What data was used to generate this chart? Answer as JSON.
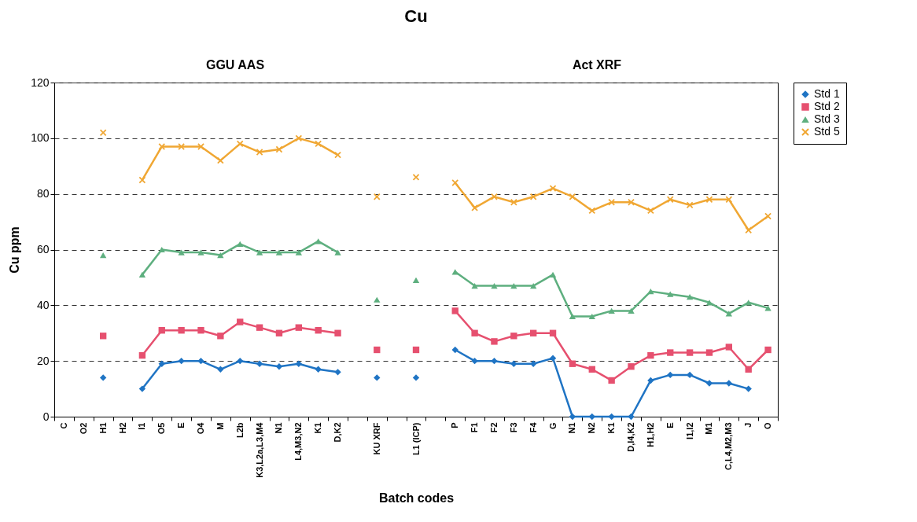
{
  "chart_data": {
    "type": "line",
    "title": "Cu",
    "xlabel": "Batch codes",
    "ylabel": "Cu ppm",
    "annotations": [
      "GGU AAS",
      "Act XRF"
    ],
    "categories": [
      "C",
      "O2",
      "H1",
      "H2",
      "I1",
      "O5",
      "E",
      "O4",
      "M",
      "L2b",
      "K3,L2a,L3,M4",
      "N1",
      "L4,M3,N2",
      "K1",
      "D,K2",
      null,
      "KU XRF",
      null,
      "L1 (ICP)",
      null,
      "P",
      "F1",
      "F2",
      "F3",
      "F4",
      "G",
      "N1",
      "N2",
      "K1",
      "D,I4,K2",
      "H1,H2",
      "E",
      "I1,I2",
      "M1",
      "C,L4,M2,M3",
      "J",
      "O"
    ],
    "series": [
      {
        "name": "Std 1",
        "color": "#1f74c4",
        "marker": "diamond",
        "values": [
          null,
          null,
          14,
          null,
          10,
          19,
          20,
          20,
          17,
          20,
          19,
          18,
          19,
          17,
          16,
          null,
          14,
          null,
          14,
          null,
          24,
          20,
          20,
          19,
          19,
          21,
          0,
          0,
          0,
          0,
          13,
          15,
          15,
          12,
          12,
          10,
          null
        ]
      },
      {
        "name": "Std 2",
        "color": "#e6506f",
        "marker": "square",
        "values": [
          null,
          null,
          29,
          null,
          22,
          31,
          31,
          31,
          29,
          34,
          32,
          30,
          32,
          31,
          30,
          null,
          24,
          null,
          24,
          null,
          38,
          30,
          27,
          29,
          30,
          30,
          19,
          17,
          13,
          18,
          22,
          23,
          23,
          23,
          25,
          17,
          24
        ]
      },
      {
        "name": "Std 3",
        "color": "#5eaf7f",
        "marker": "triangle",
        "values": [
          null,
          null,
          58,
          null,
          51,
          60,
          59,
          59,
          58,
          62,
          59,
          59,
          59,
          63,
          59,
          null,
          42,
          null,
          49,
          null,
          52,
          47,
          47,
          47,
          47,
          51,
          36,
          36,
          38,
          38,
          45,
          44,
          43,
          41,
          37,
          41,
          39
        ]
      },
      {
        "name": "Std 5",
        "color": "#f0a733",
        "marker": "cross",
        "values": [
          null,
          null,
          102,
          null,
          85,
          97,
          97,
          97,
          92,
          98,
          95,
          96,
          100,
          98,
          94,
          null,
          79,
          null,
          86,
          null,
          84,
          75,
          79,
          77,
          79,
          82,
          79,
          74,
          77,
          77,
          74,
          78,
          76,
          78,
          78,
          67,
          72
        ]
      }
    ],
    "ylim": [
      0,
      120
    ],
    "yticks": [
      0,
      20,
      40,
      60,
      80,
      100,
      120
    ],
    "grid": "y",
    "legend": "right",
    "line_style": "solid"
  }
}
